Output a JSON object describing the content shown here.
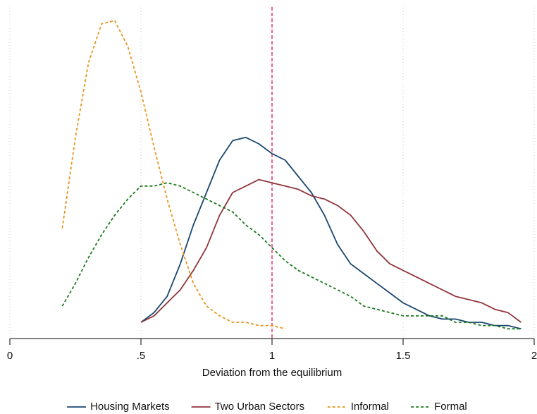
{
  "chart_data": {
    "type": "line",
    "x_label": "Deviation from the equilibrium",
    "x": [
      0.2,
      0.25,
      0.3,
      0.35,
      0.4,
      0.45,
      0.5,
      0.55,
      0.6,
      0.65,
      0.7,
      0.75,
      0.8,
      0.85,
      0.9,
      0.95,
      1.0,
      1.05,
      1.1,
      1.15,
      1.2,
      1.25,
      1.3,
      1.35,
      1.4,
      1.45,
      1.5,
      1.55,
      1.6,
      1.65,
      1.7,
      1.75,
      1.8,
      1.85,
      1.9,
      1.95
    ],
    "series": [
      {
        "name": "Housing Markets",
        "color": "#1a476f",
        "line_style": "solid",
        "values": [
          null,
          null,
          null,
          null,
          null,
          null,
          0.05,
          0.08,
          0.13,
          0.23,
          0.35,
          0.45,
          0.55,
          0.61,
          0.62,
          0.6,
          0.57,
          0.55,
          0.5,
          0.45,
          0.38,
          0.29,
          0.23,
          0.2,
          0.17,
          0.14,
          0.11,
          0.09,
          0.07,
          0.06,
          0.06,
          0.05,
          0.05,
          0.04,
          0.04,
          0.03
        ]
      },
      {
        "name": "Two Urban Sectors",
        "color": "#90353b",
        "line_style": "solid",
        "values": [
          null,
          null,
          null,
          null,
          null,
          null,
          0.05,
          0.07,
          0.11,
          0.15,
          0.21,
          0.28,
          0.38,
          0.45,
          0.47,
          0.49,
          0.48,
          0.47,
          0.46,
          0.44,
          0.43,
          0.41,
          0.38,
          0.33,
          0.27,
          0.23,
          0.21,
          0.19,
          0.17,
          0.15,
          0.13,
          0.12,
          0.11,
          0.09,
          0.08,
          0.05
        ]
      },
      {
        "name": "Informal",
        "color": "#e8951c",
        "line_style": "dashed",
        "values": [
          0.34,
          0.62,
          0.85,
          0.97,
          0.98,
          0.9,
          0.76,
          0.59,
          0.43,
          0.29,
          0.17,
          0.1,
          0.07,
          0.05,
          0.05,
          0.04,
          0.04,
          0.03,
          null,
          null,
          null,
          null,
          null,
          null,
          null,
          null,
          null,
          null,
          null,
          null,
          null,
          null,
          null,
          null,
          null,
          null
        ]
      },
      {
        "name": "Formal",
        "color": "#1a7a1a",
        "line_style": "dashed",
        "values": [
          0.1,
          0.17,
          0.25,
          0.32,
          0.38,
          0.43,
          0.47,
          0.47,
          0.48,
          0.47,
          0.45,
          0.43,
          0.41,
          0.39,
          0.35,
          0.32,
          0.28,
          0.24,
          0.21,
          0.19,
          0.17,
          0.15,
          0.13,
          0.1,
          0.09,
          0.08,
          0.07,
          0.07,
          0.07,
          0.07,
          0.05,
          0.05,
          0.04,
          0.04,
          0.03,
          0.03
        ]
      }
    ],
    "xlim": [
      0,
      2
    ],
    "xticks": [
      0,
      {
        "value": 0.5,
        "label": ".5"
      },
      1,
      1.5,
      2
    ],
    "ylim": [
      0,
      1
    ],
    "grid": true,
    "reference_line": {
      "x": 1,
      "color": "#e8336b"
    },
    "legend": "bottom"
  }
}
